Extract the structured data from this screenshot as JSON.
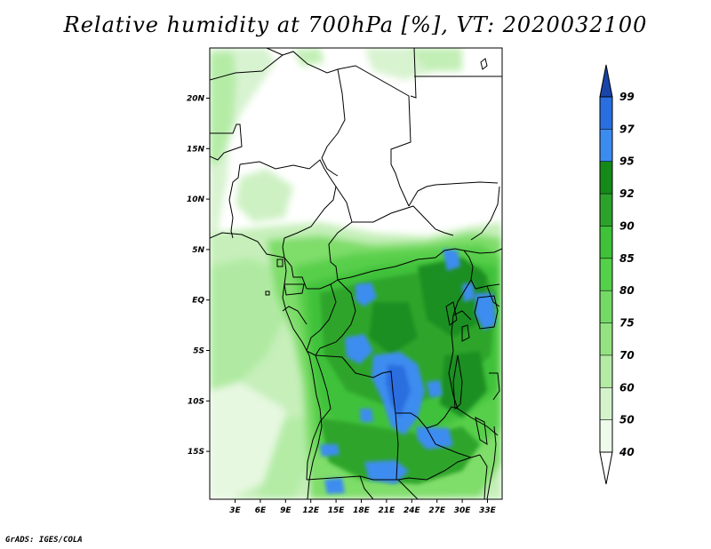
{
  "title": "Relative humidity at 700hPa [%], VT: 2020032100",
  "credit": "GrADS: IGES/COLA",
  "map": {
    "lat_ticks": [
      "20N",
      "15N",
      "10N",
      "5N",
      "EQ",
      "5S",
      "10S",
      "15S"
    ],
    "lon_ticks": [
      "3E",
      "6E",
      "9E",
      "12E",
      "15E",
      "18E",
      "21E",
      "24E",
      "27E",
      "30E",
      "33E"
    ]
  },
  "colorbar": {
    "levels": [
      "40",
      "50",
      "60",
      "70",
      "75",
      "80",
      "85",
      "90",
      "92",
      "95",
      "97",
      "99"
    ],
    "colors": [
      "#eefaea",
      "#d4f3cc",
      "#b4eca6",
      "#94e383",
      "#74da66",
      "#55d04b",
      "#3fc13a",
      "#2da22b",
      "#168a18",
      "#3c8cf0",
      "#2a6ee0",
      "#1c50c0",
      "#1a44a8"
    ],
    "bottom_color": "#ffffff"
  }
}
